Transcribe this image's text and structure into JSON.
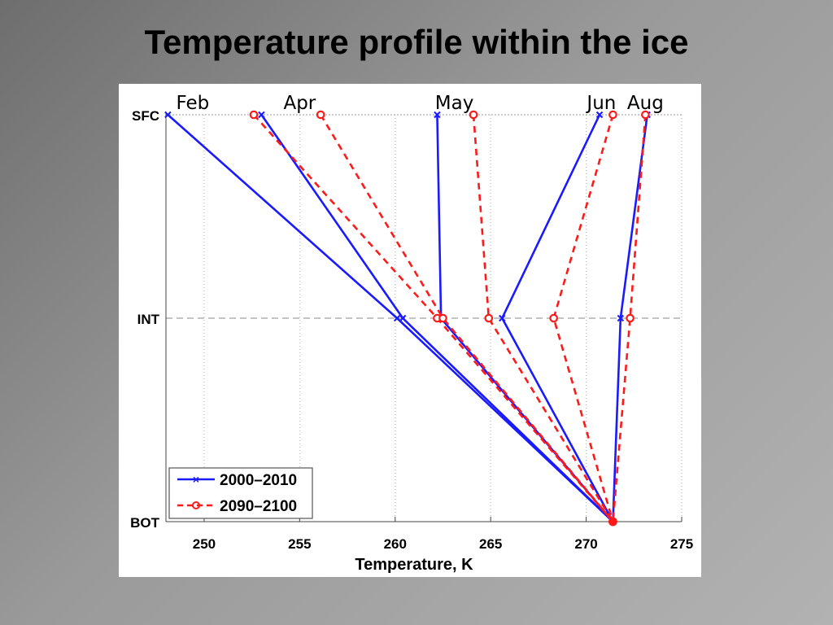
{
  "slide": {
    "title": "Temperature profile within the ice"
  },
  "colors": {
    "series_2000": "#1a1aff",
    "series_2090": "#ff1a1a",
    "grid": "#b0b0b0"
  },
  "chart_data": {
    "type": "line",
    "title": "",
    "xlabel": "Temperature, K",
    "ylabel": "",
    "xlim": [
      248,
      275
    ],
    "x_ticks": [
      250,
      255,
      260,
      265,
      270,
      275
    ],
    "y_categories": [
      "SFC",
      "INT",
      "BOT"
    ],
    "month_labels": [
      {
        "text": "Feb",
        "x": 249.4
      },
      {
        "text": "Apr",
        "x": 255.0
      },
      {
        "text": "May",
        "x": 263.1
      },
      {
        "text": "Jun",
        "x": 270.8
      },
      {
        "text": "Aug",
        "x": 273.1
      }
    ],
    "legend": {
      "placement": "bottom-left",
      "entries": [
        "2000–2010",
        "2090–2100"
      ]
    },
    "series": [
      {
        "name": "2000–2010",
        "profiles": [
          {
            "month": "Feb",
            "values": [
              248.1,
              260.1,
              271.4
            ]
          },
          {
            "month": "Apr",
            "values": [
              253.0,
              260.4,
              271.4
            ]
          },
          {
            "month": "May",
            "values": [
              262.2,
              262.4,
              271.4
            ]
          },
          {
            "month": "Jun",
            "values": [
              270.7,
              265.6,
              271.4
            ]
          },
          {
            "month": "Aug",
            "values": [
              273.2,
              271.8,
              271.4
            ]
          }
        ]
      },
      {
        "name": "2090–2100",
        "profiles": [
          {
            "month": "Apr",
            "values": [
              252.6,
              262.2,
              271.4
            ]
          },
          {
            "month": "May",
            "values": [
              256.1,
              262.5,
              271.4
            ]
          },
          {
            "month": "May",
            "values": [
              264.1,
              264.9,
              271.4
            ]
          },
          {
            "month": "Jun",
            "values": [
              271.4,
              268.3,
              271.4
            ]
          },
          {
            "month": "Aug",
            "values": [
              273.1,
              272.3,
              271.4
            ]
          }
        ]
      }
    ]
  }
}
